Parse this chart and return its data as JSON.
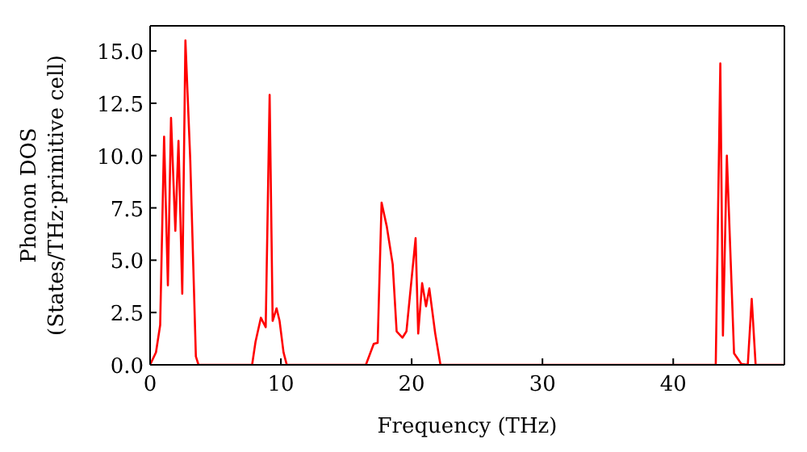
{
  "chart_data": {
    "type": "line",
    "xlabel": "Frequency (THz)",
    "ylabel": "Phonon DOS\n(States/THz·primitive cell)",
    "x": [
      0,
      0.45,
      0.77,
      1.07,
      1.36,
      1.6,
      1.93,
      2.17,
      2.46,
      2.7,
      3.07,
      3.5,
      3.7,
      7.8,
      8.06,
      8.47,
      8.84,
      9.14,
      9.37,
      9.67,
      9.9,
      10.2,
      10.45,
      16.5,
      17.1,
      17.4,
      17.7,
      18.1,
      18.55,
      18.85,
      19.3,
      19.6,
      20.3,
      20.5,
      20.8,
      21.1,
      21.35,
      21.8,
      22.2,
      43.25,
      43.6,
      43.8,
      44.1,
      44.65,
      45.2,
      45.7,
      46.0,
      46.3,
      48.5
    ],
    "series": [
      {
        "color": "#ff0000",
        "values": [
          0,
          0.6,
          1.9,
          10.9,
          3.8,
          11.8,
          6.4,
          10.7,
          3.4,
          15.5,
          9.8,
          0.4,
          0,
          0,
          1.1,
          2.25,
          1.8,
          12.9,
          2.1,
          2.7,
          2.1,
          0.6,
          0,
          0,
          1.0,
          1.05,
          7.75,
          6.6,
          4.8,
          1.6,
          1.3,
          1.6,
          6.05,
          1.5,
          3.9,
          2.8,
          3.65,
          1.5,
          0,
          0,
          14.4,
          1.4,
          10.0,
          0.55,
          0.05,
          0,
          3.15,
          0,
          0
        ]
      }
    ],
    "xlim": [
      0,
      48.5
    ],
    "ylim": [
      0,
      16.2
    ],
    "xticks": [
      0,
      10,
      20,
      30,
      40
    ],
    "yticks": [
      {
        "value": 0,
        "label": "0.0"
      },
      {
        "value": 2.5,
        "label": "2.5"
      },
      {
        "value": 5,
        "label": "5.0"
      },
      {
        "value": 7.5,
        "label": "7.5"
      },
      {
        "value": 10,
        "label": "10.0"
      },
      {
        "value": 12.5,
        "label": "12.5"
      },
      {
        "value": 15,
        "label": "15.0"
      }
    ],
    "marker": "none",
    "line_style": "solid",
    "grid": false,
    "legend": false
  }
}
